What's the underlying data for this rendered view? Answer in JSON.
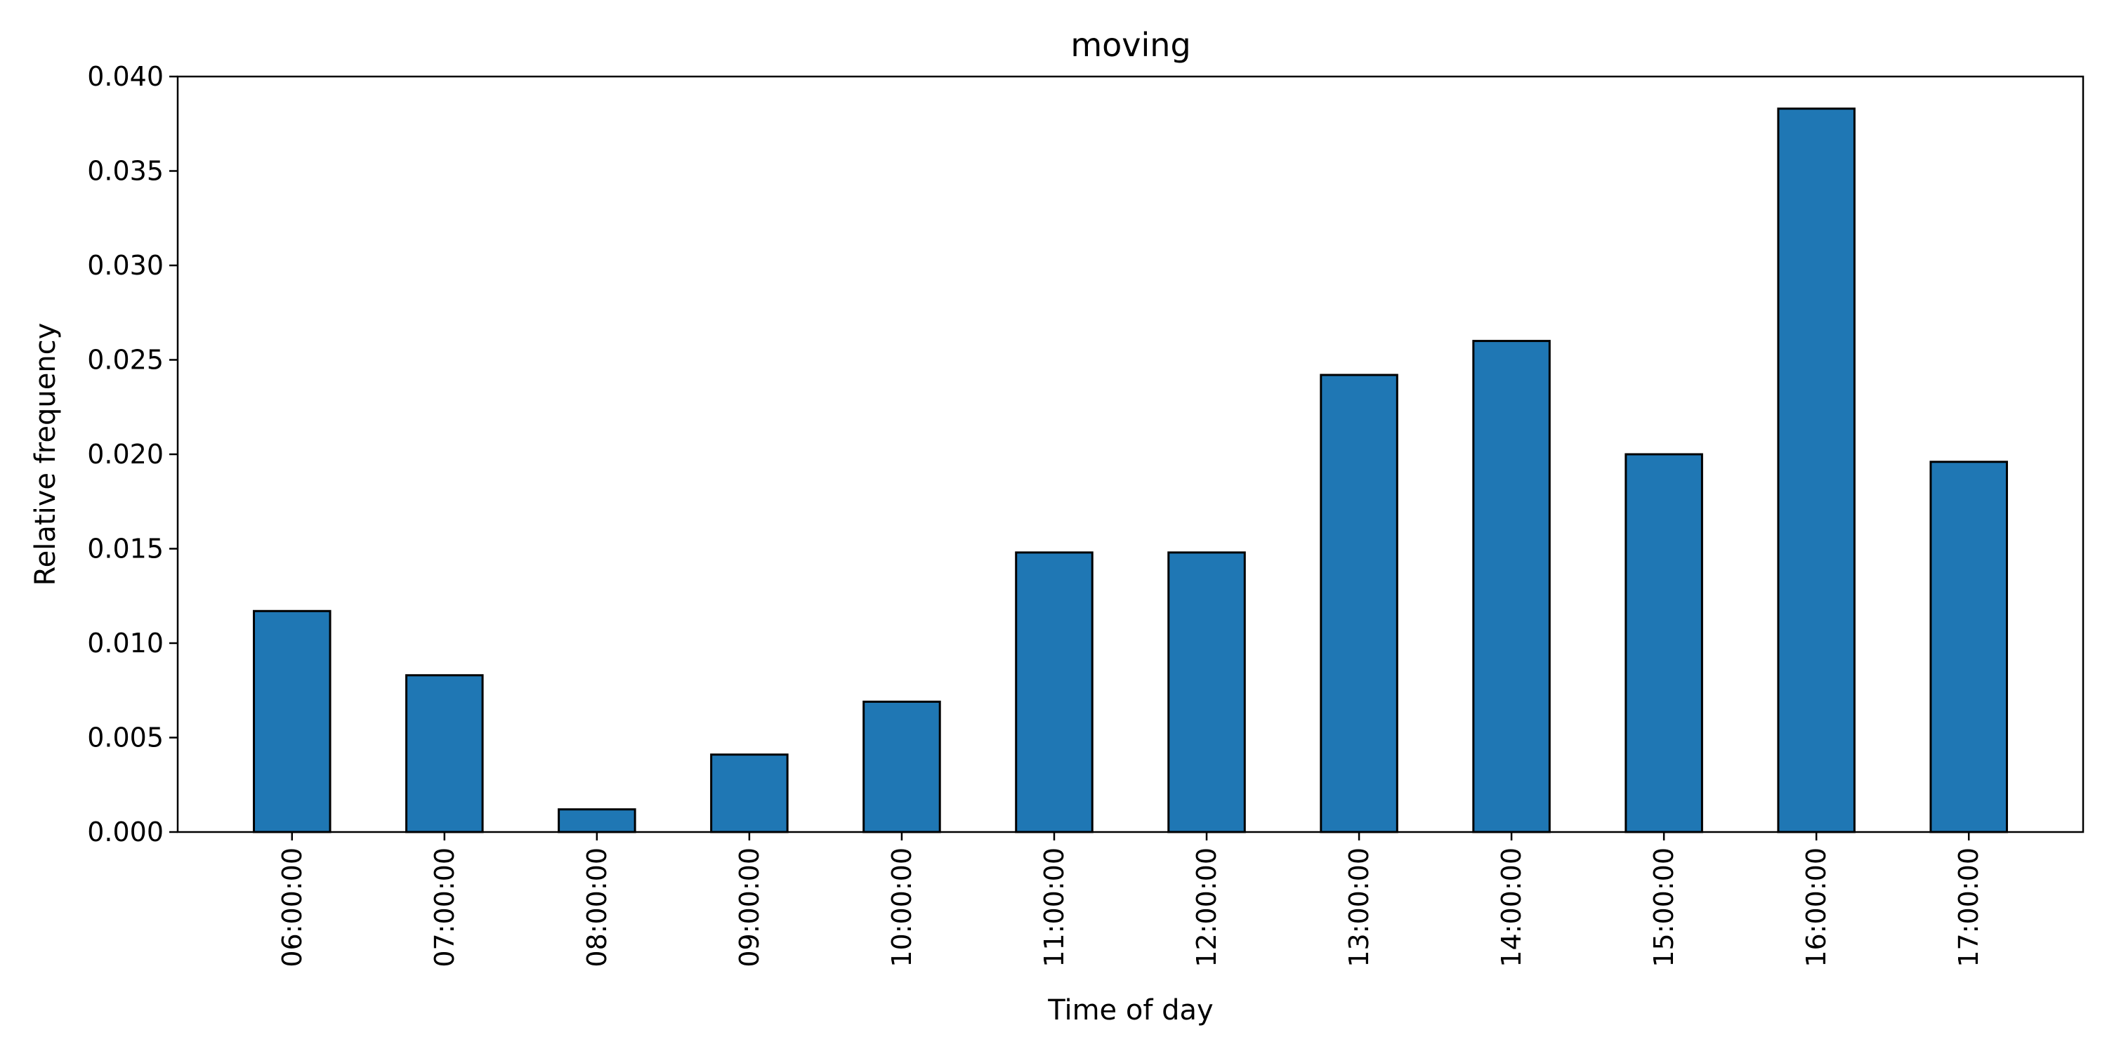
{
  "chart_data": {
    "type": "bar",
    "title": "moving",
    "xlabel": "Time of day",
    "ylabel": "Relative frequency",
    "categories": [
      "06:00:00",
      "07:00:00",
      "08:00:00",
      "09:00:00",
      "10:00:00",
      "11:00:00",
      "12:00:00",
      "13:00:00",
      "14:00:00",
      "15:00:00",
      "16:00:00",
      "17:00:00"
    ],
    "values": [
      0.0117,
      0.0083,
      0.0012,
      0.0041,
      0.0069,
      0.0148,
      0.0148,
      0.0242,
      0.026,
      0.02,
      0.0383,
      0.0196
    ],
    "ylim": [
      0,
      0.04
    ],
    "yticks": [
      "0.000",
      "0.005",
      "0.010",
      "0.015",
      "0.020",
      "0.025",
      "0.030",
      "0.035",
      "0.040"
    ],
    "bar_color": "#1f77b4",
    "bar_edge_color": "#000000",
    "grid": false,
    "legend": "none"
  }
}
